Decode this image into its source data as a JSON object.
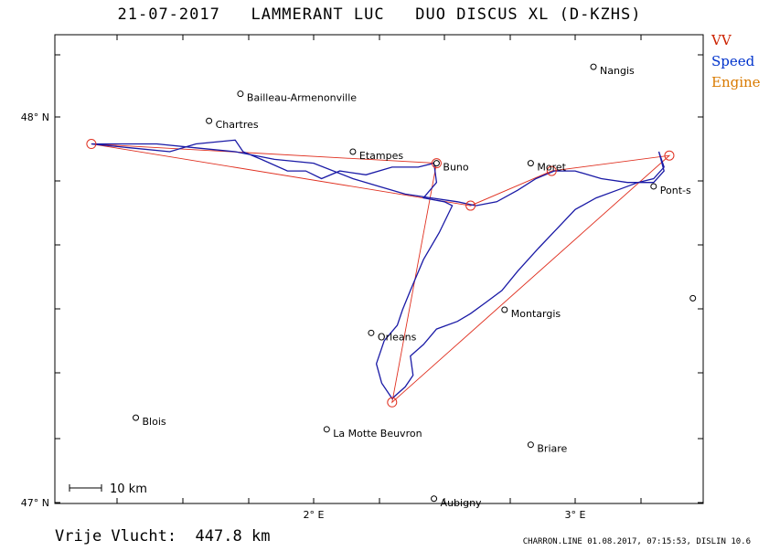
{
  "header": {
    "title": "21-07-2017   LAMMERANT LUC   DUO DISCUS XL (D-KZHS)"
  },
  "legend": {
    "vv": {
      "label": "VV",
      "color": "#cc2200"
    },
    "speed": {
      "label": "Speed",
      "color": "#0033cc"
    },
    "engine": {
      "label": "Engine",
      "color": "#d97a00"
    }
  },
  "axes": {
    "lat_labels": [
      {
        "label": "48° N",
        "lat": 48.0
      },
      {
        "label": "47° N",
        "lat": 47.0
      }
    ],
    "lon_labels": [
      {
        "label": "2° E",
        "lon": 2.0
      },
      {
        "label": "3° E",
        "lon": 3.0
      }
    ]
  },
  "towns": [
    {
      "name": "Nangis",
      "lon": 3.07,
      "lat": 48.13
    },
    {
      "name": "Bailleau-Armenonville",
      "lon": 1.72,
      "lat": 48.06
    },
    {
      "name": "Chartres",
      "lon": 1.6,
      "lat": 47.99
    },
    {
      "name": "Etampes",
      "lon": 2.15,
      "lat": 47.91
    },
    {
      "name": "Buno",
      "lon": 2.47,
      "lat": 47.88
    },
    {
      "name": "Moret",
      "lon": 2.83,
      "lat": 47.88
    },
    {
      "name": "Pont-s",
      "lon": 3.3,
      "lat": 47.82
    },
    {
      "name": "",
      "lon": 3.45,
      "lat": 47.53
    },
    {
      "name": "Montargis",
      "lon": 2.73,
      "lat": 47.5
    },
    {
      "name": "Orleans",
      "lon": 2.22,
      "lat": 47.44
    },
    {
      "name": "Blois",
      "lon": 1.32,
      "lat": 47.22
    },
    {
      "name": "La Motte Beuvron",
      "lon": 2.05,
      "lat": 47.19
    },
    {
      "name": "Briare",
      "lon": 2.83,
      "lat": 47.15
    },
    {
      "name": "Aubigny",
      "lon": 2.46,
      "lat": 47.01
    }
  ],
  "turnpoints": [
    {
      "lon": 1.15,
      "lat": 47.93
    },
    {
      "lon": 2.47,
      "lat": 47.88
    },
    {
      "lon": 2.6,
      "lat": 47.77
    },
    {
      "lon": 2.91,
      "lat": 47.86
    },
    {
      "lon": 3.36,
      "lat": 47.9
    },
    {
      "lon": 2.3,
      "lat": 47.26
    }
  ],
  "task_route": [
    {
      "lon": 1.15,
      "lat": 47.93
    },
    {
      "lon": 2.47,
      "lat": 47.88
    },
    {
      "lon": 2.3,
      "lat": 47.26
    },
    {
      "lon": 3.36,
      "lat": 47.9
    },
    {
      "lon": 2.91,
      "lat": 47.86
    },
    {
      "lon": 2.6,
      "lat": 47.77
    },
    {
      "lon": 1.15,
      "lat": 47.93
    }
  ],
  "flight_track": [
    {
      "lon": 1.15,
      "lat": 47.93
    },
    {
      "lon": 1.3,
      "lat": 47.92
    },
    {
      "lon": 1.45,
      "lat": 47.91
    },
    {
      "lon": 1.55,
      "lat": 47.93
    },
    {
      "lon": 1.7,
      "lat": 47.94
    },
    {
      "lon": 1.73,
      "lat": 47.91
    },
    {
      "lon": 1.8,
      "lat": 47.89
    },
    {
      "lon": 1.9,
      "lat": 47.86
    },
    {
      "lon": 1.97,
      "lat": 47.86
    },
    {
      "lon": 2.03,
      "lat": 47.84
    },
    {
      "lon": 2.1,
      "lat": 47.86
    },
    {
      "lon": 2.2,
      "lat": 47.85
    },
    {
      "lon": 2.3,
      "lat": 47.87
    },
    {
      "lon": 2.4,
      "lat": 47.87
    },
    {
      "lon": 2.46,
      "lat": 47.88
    },
    {
      "lon": 2.47,
      "lat": 47.83
    },
    {
      "lon": 2.42,
      "lat": 47.79
    },
    {
      "lon": 2.5,
      "lat": 47.78
    },
    {
      "lon": 2.53,
      "lat": 47.77
    },
    {
      "lon": 2.48,
      "lat": 47.7
    },
    {
      "lon": 2.42,
      "lat": 47.63
    },
    {
      "lon": 2.37,
      "lat": 47.55
    },
    {
      "lon": 2.34,
      "lat": 47.5
    },
    {
      "lon": 2.32,
      "lat": 47.46
    },
    {
      "lon": 2.27,
      "lat": 47.42
    },
    {
      "lon": 2.24,
      "lat": 47.36
    },
    {
      "lon": 2.26,
      "lat": 47.31
    },
    {
      "lon": 2.3,
      "lat": 47.27
    },
    {
      "lon": 2.35,
      "lat": 47.3
    },
    {
      "lon": 2.38,
      "lat": 47.33
    },
    {
      "lon": 2.37,
      "lat": 47.38
    },
    {
      "lon": 2.42,
      "lat": 47.41
    },
    {
      "lon": 2.47,
      "lat": 47.45
    },
    {
      "lon": 2.55,
      "lat": 47.47
    },
    {
      "lon": 2.6,
      "lat": 47.49
    },
    {
      "lon": 2.66,
      "lat": 47.52
    },
    {
      "lon": 2.72,
      "lat": 47.55
    },
    {
      "lon": 2.78,
      "lat": 47.6
    },
    {
      "lon": 2.86,
      "lat": 47.66
    },
    {
      "lon": 2.93,
      "lat": 47.71
    },
    {
      "lon": 3.0,
      "lat": 47.76
    },
    {
      "lon": 3.08,
      "lat": 47.79
    },
    {
      "lon": 3.16,
      "lat": 47.81
    },
    {
      "lon": 3.24,
      "lat": 47.83
    },
    {
      "lon": 3.3,
      "lat": 47.84
    },
    {
      "lon": 3.34,
      "lat": 47.87
    },
    {
      "lon": 3.32,
      "lat": 47.91
    },
    {
      "lon": 3.34,
      "lat": 47.86
    },
    {
      "lon": 3.3,
      "lat": 47.83
    },
    {
      "lon": 3.2,
      "lat": 47.83
    },
    {
      "lon": 3.1,
      "lat": 47.84
    },
    {
      "lon": 3.0,
      "lat": 47.86
    },
    {
      "lon": 2.92,
      "lat": 47.86
    },
    {
      "lon": 2.85,
      "lat": 47.84
    },
    {
      "lon": 2.78,
      "lat": 47.81
    },
    {
      "lon": 2.7,
      "lat": 47.78
    },
    {
      "lon": 2.62,
      "lat": 47.77
    },
    {
      "lon": 2.55,
      "lat": 47.78
    },
    {
      "lon": 2.45,
      "lat": 47.79
    },
    {
      "lon": 2.35,
      "lat": 47.8
    },
    {
      "lon": 2.25,
      "lat": 47.82
    },
    {
      "lon": 2.15,
      "lat": 47.84
    },
    {
      "lon": 2.0,
      "lat": 47.88
    },
    {
      "lon": 1.85,
      "lat": 47.89
    },
    {
      "lon": 1.7,
      "lat": 47.91
    },
    {
      "lon": 1.55,
      "lat": 47.92
    },
    {
      "lon": 1.4,
      "lat": 47.93
    },
    {
      "lon": 1.22,
      "lat": 47.93
    },
    {
      "lon": 1.15,
      "lat": 47.93
    }
  ],
  "scale_bar": {
    "label": "10 km"
  },
  "distance": {
    "label": "Vrije Vlucht:",
    "value": "447.8 km"
  },
  "footer": {
    "text": "CHARRON.LINE 01.08.2017, 07:15:53, DISLIN 10.6"
  }
}
